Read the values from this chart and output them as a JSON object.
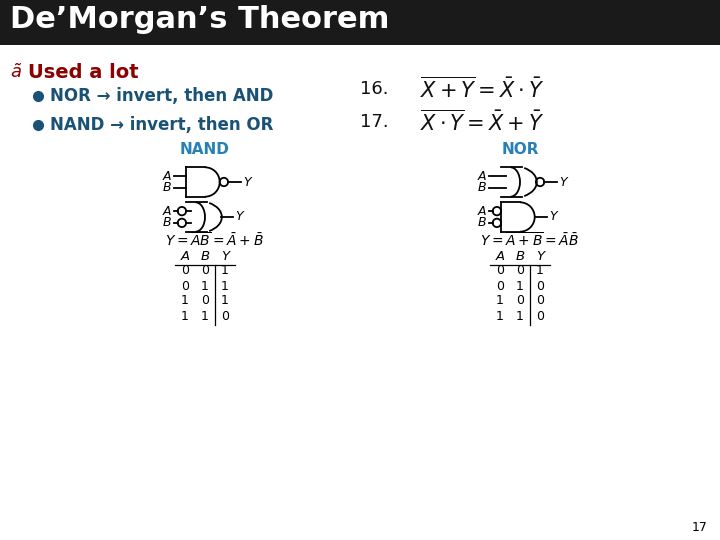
{
  "title": "De’Morgan’s Theorem",
  "title_bg": "#1a1a1a",
  "title_color": "#ffffff",
  "title_fontsize": 22,
  "bullet_color": "#8b0000",
  "text_color_blue": "#1a5276",
  "text_color_dark": "#111111",
  "slide_bg": "#ffffff",
  "page_number": "17",
  "bullet1": "NOR → invert, then AND",
  "bullet2": "NAND → invert, then OR",
  "used_a_lot": "Used a lot",
  "nand_label": "NAND",
  "nor_label": "NOR",
  "nand_table": {
    "A": [
      0,
      0,
      1,
      1
    ],
    "B": [
      0,
      1,
      0,
      1
    ],
    "Y": [
      1,
      1,
      1,
      0
    ]
  },
  "nor_table": {
    "A": [
      0,
      0,
      1,
      1
    ],
    "B": [
      0,
      1,
      0,
      1
    ],
    "Y": [
      1,
      0,
      0,
      0
    ]
  }
}
